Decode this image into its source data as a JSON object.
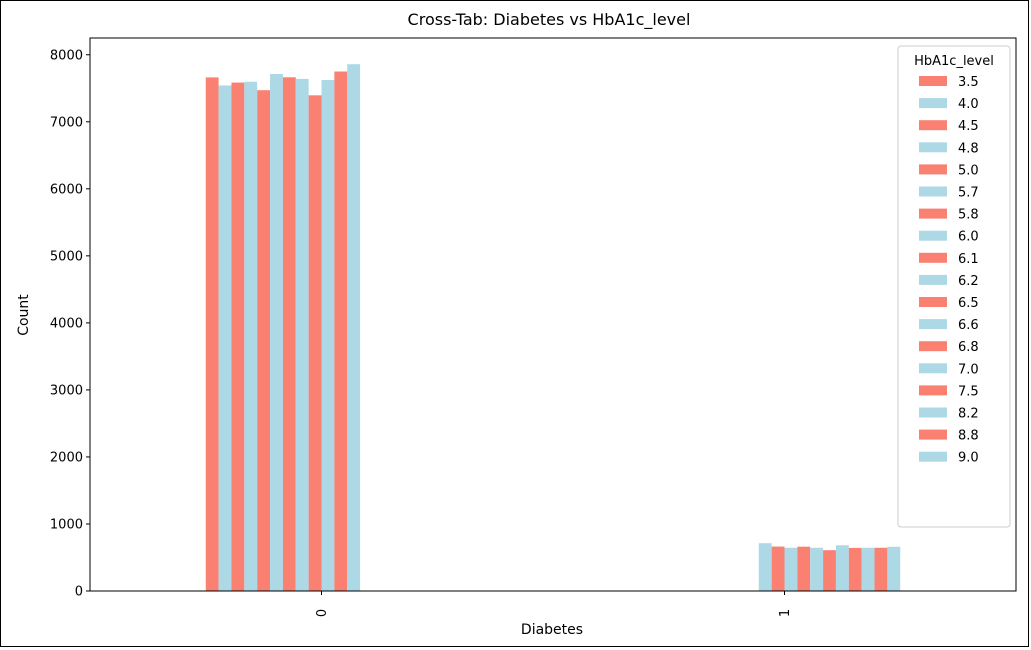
{
  "colors": {
    "salmon": "#fa8072",
    "lightblue": "#add8e6"
  },
  "chart_data": {
    "type": "bar",
    "title": "Cross-Tab: Diabetes vs HbA1c_level",
    "xlabel": "Diabetes",
    "ylabel": "Count",
    "categories": [
      "0",
      "1"
    ],
    "ylim": [
      0,
      8250
    ],
    "yticks": [
      0,
      1000,
      2000,
      3000,
      4000,
      5000,
      6000,
      7000,
      8000
    ],
    "grid": false,
    "legend": {
      "title": "HbA1c_level",
      "placement": "top-right"
    },
    "series": [
      {
        "name": "3.5",
        "color": "#fa8072",
        "values": [
          7662,
          0
        ]
      },
      {
        "name": "4.0",
        "color": "#add8e6",
        "values": [
          7542,
          0
        ]
      },
      {
        "name": "4.5",
        "color": "#fa8072",
        "values": [
          7585,
          0
        ]
      },
      {
        "name": "4.8",
        "color": "#add8e6",
        "values": [
          7597,
          0
        ]
      },
      {
        "name": "5.0",
        "color": "#fa8072",
        "values": [
          7471,
          0
        ]
      },
      {
        "name": "5.7",
        "color": "#add8e6",
        "values": [
          7713,
          0
        ]
      },
      {
        "name": "5.8",
        "color": "#fa8072",
        "values": [
          7664,
          0
        ]
      },
      {
        "name": "6.0",
        "color": "#add8e6",
        "values": [
          7640,
          713
        ]
      },
      {
        "name": "6.1",
        "color": "#fa8072",
        "values": [
          7395,
          663
        ]
      },
      {
        "name": "6.2",
        "color": "#add8e6",
        "values": [
          7624,
          645
        ]
      },
      {
        "name": "6.5",
        "color": "#fa8072",
        "values": [
          7750,
          661
        ]
      },
      {
        "name": "6.6",
        "color": "#add8e6",
        "values": [
          7859,
          645
        ]
      },
      {
        "name": "6.8",
        "color": "#fa8072",
        "values": [
          0,
          609
        ]
      },
      {
        "name": "7.0",
        "color": "#add8e6",
        "values": [
          0,
          682
        ]
      },
      {
        "name": "7.5",
        "color": "#fa8072",
        "values": [
          0,
          643
        ]
      },
      {
        "name": "8.2",
        "color": "#add8e6",
        "values": [
          0,
          645
        ]
      },
      {
        "name": "8.8",
        "color": "#fa8072",
        "values": [
          0,
          645
        ]
      },
      {
        "name": "9.0",
        "color": "#add8e6",
        "values": [
          0,
          660
        ]
      }
    ]
  }
}
